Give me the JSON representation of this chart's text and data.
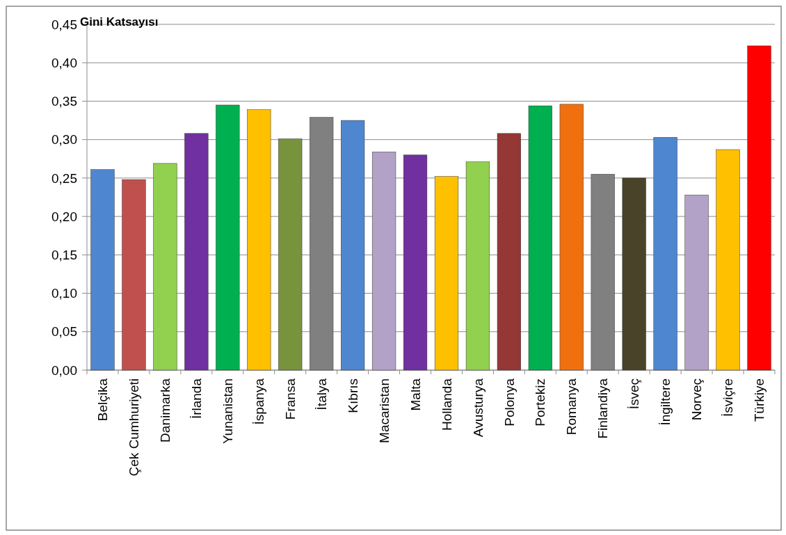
{
  "chart_data": {
    "type": "bar",
    "title": "Gini Katsayısı",
    "categories": [
      "Belçika",
      "Çek Cumhuriyeti",
      "Danimarka",
      "İrlanda",
      "Yunanistan",
      "İspanya",
      "Fransa",
      "İtalya",
      "Kıbrıs",
      "Macaristan",
      "Malta",
      "Hollanda",
      "Avusturya",
      "Polonya",
      "Portekiz",
      "Romanya",
      "Finlandiya",
      "İsveç",
      "İngiltere",
      "Norveç",
      "İsviçre",
      "Türkiye"
    ],
    "values": [
      0.261,
      0.248,
      0.269,
      0.308,
      0.345,
      0.339,
      0.301,
      0.329,
      0.325,
      0.284,
      0.28,
      0.252,
      0.271,
      0.308,
      0.344,
      0.346,
      0.255,
      0.25,
      0.303,
      0.228,
      0.287,
      0.422
    ],
    "colors": [
      "#4f86d0",
      "#c0504d",
      "#92d050",
      "#7030a0",
      "#00b050",
      "#ffc000",
      "#77933c",
      "#808080",
      "#4f86d0",
      "#b3a2c7",
      "#7030a0",
      "#ffc000",
      "#92d050",
      "#953735",
      "#00b050",
      "#f07010",
      "#808080",
      "#494429",
      "#4f86d0",
      "#b3a2c7",
      "#ffc000",
      "#ff0000"
    ],
    "ylim": [
      0,
      0.45
    ],
    "yticks": [
      {
        "value": 0,
        "label": "0,00"
      },
      {
        "value": 0.05,
        "label": "0,05"
      },
      {
        "value": 0.1,
        "label": "0,10"
      },
      {
        "value": 0.15,
        "label": "0,15"
      },
      {
        "value": 0.2,
        "label": "0,20"
      },
      {
        "value": 0.25,
        "label": "0,25"
      },
      {
        "value": 0.3,
        "label": "0,30"
      },
      {
        "value": 0.35,
        "label": "0,35"
      },
      {
        "value": 0.4,
        "label": "0,40"
      },
      {
        "value": 0.45,
        "label": "0,45"
      }
    ],
    "grid": "y"
  }
}
